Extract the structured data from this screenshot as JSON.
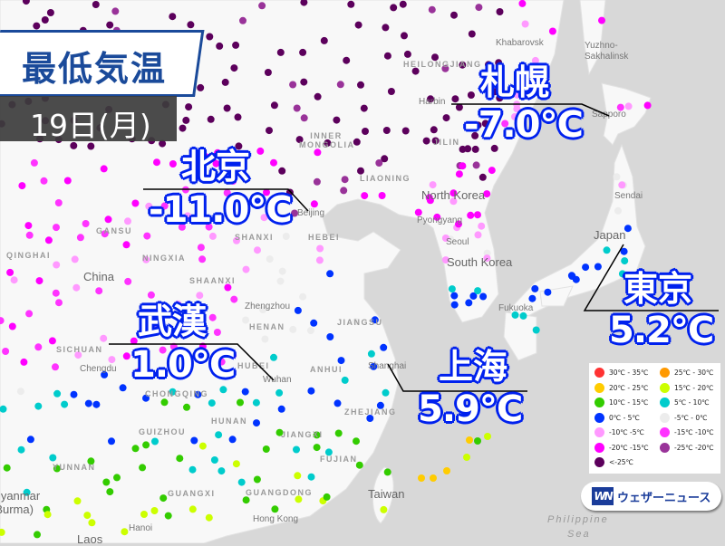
{
  "header": {
    "title": "最低気温",
    "date": "19日(月)"
  },
  "colors": {
    "title_blue": "#1a4a9a",
    "label_outline": "#0022ee",
    "land": "#f8f8f8",
    "sea": "#d8d8d8"
  },
  "callouts": [
    {
      "city": "札幌",
      "temp": "-7.0℃"
    },
    {
      "city": "北京",
      "temp": "-11.0℃"
    },
    {
      "city": "武漢",
      "temp": "1.0℃"
    },
    {
      "city": "上海",
      "temp": "5.9℃"
    },
    {
      "city": "東京",
      "temp": "5.2℃"
    }
  ],
  "map_labels": {
    "provinces": [
      "HEILONGJIANG",
      "JILIN",
      "LIAONING",
      "INNER MONGOLIA",
      "HEBEI",
      "SHANXI",
      "GANSU",
      "NINGXIA",
      "QINGHAI",
      "SHAANXI",
      "HENAN",
      "SICHUAN",
      "HUBEI",
      "ANHUI",
      "JIANGSU",
      "CHONGQING",
      "HUNAN",
      "GUIZHOU",
      "JIANGXI",
      "ZHEJIANG",
      "FUJIAN",
      "YUNNAN",
      "GUANGXI",
      "GUANGDONG"
    ],
    "cities": [
      "Khabarovsk",
      "Harbin",
      "Beijing",
      "Pyongyang",
      "Seoul",
      "Sapporo",
      "Sendai",
      "Fukuoka",
      "Zhengzhou",
      "Chengdu",
      "Wuhan",
      "Shanghai",
      "Hanoi",
      "Hong Kong",
      "Yuzhno-Sakhalinsk"
    ],
    "countries": [
      "China",
      "North Korea",
      "South Korea",
      "Japan",
      "Taiwan",
      "Laos",
      "Myanmar (Burma)"
    ],
    "seas": [
      "Philippine",
      "Sea"
    ]
  },
  "legend": [
    {
      "label": "30℃ - 35℃",
      "color": "#ff3333"
    },
    {
      "label": "25℃ - 30℃",
      "color": "#ff9900"
    },
    {
      "label": "20℃ - 25℃",
      "color": "#ffcc00"
    },
    {
      "label": "15℃ - 20℃",
      "color": "#ccff00"
    },
    {
      "label": "10℃ - 15℃",
      "color": "#33cc00"
    },
    {
      "label": "5℃ - 10℃",
      "color": "#00cccc"
    },
    {
      "label": "0℃ - 5℃",
      "color": "#0033ff"
    },
    {
      "label": "-5℃ - 0℃",
      "color": "#ececec"
    },
    {
      "label": "-10℃ -5℃",
      "color": "#ff99ff"
    },
    {
      "label": "-15℃ -10℃",
      "color": "#ff33ff"
    },
    {
      "label": "-20℃ -15℃",
      "color": "#ff00ff"
    },
    {
      "label": "-25℃ -20℃",
      "color": "#993399"
    },
    {
      "label": "<-25℃",
      "color": "#5c005c"
    }
  ],
  "logo": {
    "mark": "WN",
    "text": "ウェザーニュース"
  }
}
